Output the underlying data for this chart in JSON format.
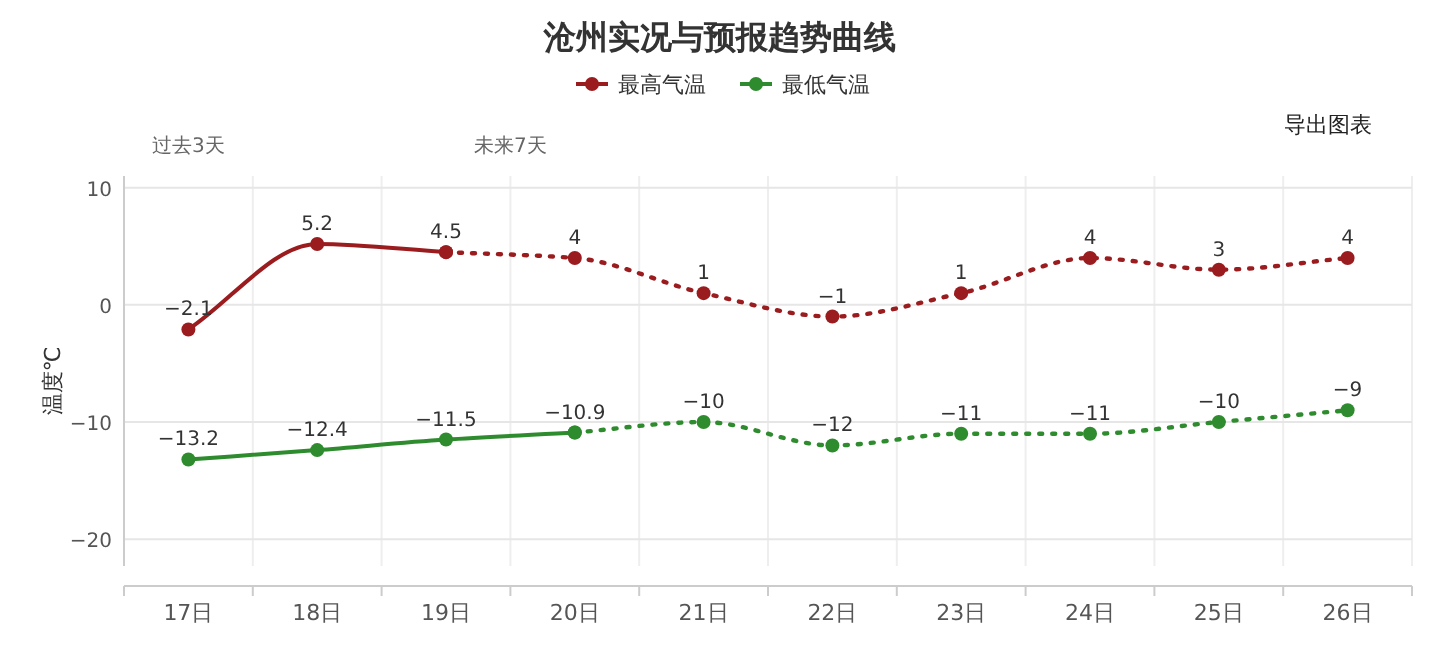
{
  "chart_data": {
    "type": "line",
    "title": "沧州实况与预报趋势曲线",
    "ylabel": "温度℃",
    "annotations": [
      "过去3天",
      "未来7天",
      "导出图表"
    ],
    "categories": [
      "17日",
      "18日",
      "19日",
      "20日",
      "21日",
      "22日",
      "23日",
      "24日",
      "25日",
      "26日"
    ],
    "series": [
      {
        "name": "最高气温",
        "color": "#9b1c1f",
        "line_style": "solid",
        "values": [
          -2.1,
          5.2,
          4.5,
          null,
          null,
          null,
          null,
          null,
          null,
          null
        ],
        "value_labels": [
          "−2.1",
          "5.2",
          "4.5",
          null,
          null,
          null,
          null,
          null,
          null,
          null
        ]
      },
      {
        "color": "#9b1c1f",
        "line_style": "dotted",
        "values": [
          null,
          null,
          4.5,
          4,
          1,
          -1,
          1,
          4,
          3,
          4
        ],
        "value_labels": [
          null,
          null,
          null,
          "4",
          "1",
          "−1",
          "1",
          "4",
          "3",
          "4"
        ]
      },
      {
        "name": "最低气温",
        "color": "#2e8b2e",
        "line_style": "solid",
        "values": [
          -13.2,
          -12.4,
          -11.5,
          -10.9,
          null,
          null,
          null,
          null,
          null,
          null
        ],
        "value_labels": [
          "−13.2",
          "−12.4",
          "−11.5",
          "−10.9",
          null,
          null,
          null,
          null,
          null,
          null
        ]
      },
      {
        "color": "#2e8b2e",
        "line_style": "dotted",
        "values": [
          null,
          null,
          null,
          -10.9,
          -10,
          -12,
          -11,
          -11,
          -10,
          -9
        ],
        "value_labels": [
          null,
          null,
          null,
          null,
          "−10",
          "−12",
          "−11",
          "−11",
          "−10",
          "−9"
        ]
      }
    ],
    "ylim": [
      -24,
      11
    ],
    "yticks": [
      10,
      0,
      {
        "value": -10,
        "label": "−10"
      },
      {
        "value": -20,
        "label": "−20"
      }
    ],
    "grid": true,
    "legend": "top",
    "marker": "circle"
  }
}
